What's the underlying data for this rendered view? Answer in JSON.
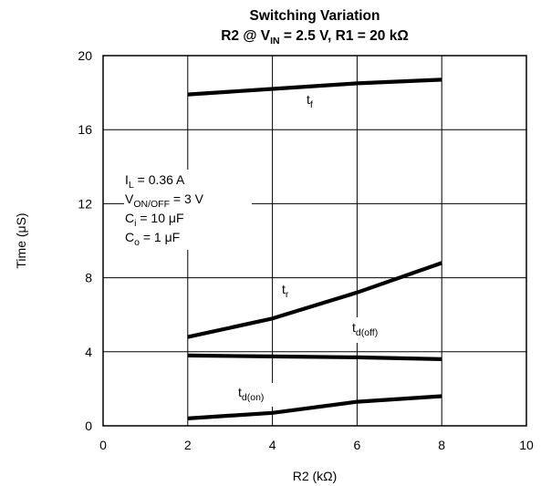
{
  "chart_data": {
    "type": "line",
    "title": {
      "line1": "Switching Variation",
      "line2_prefix": "R2 @ V",
      "line2_sub": "IN",
      "line2_suffix": " = 2.5 V, R1 = 20 kΩ"
    },
    "xlabel": "R2 (kΩ)",
    "ylabel": "Time  (μS)",
    "xlim": [
      0,
      10
    ],
    "ylim": [
      0,
      20
    ],
    "xticks": [
      0,
      2,
      4,
      6,
      8,
      10
    ],
    "yticks": [
      0,
      4,
      8,
      12,
      16,
      20
    ],
    "grid": true,
    "conditions": [
      {
        "main": "I",
        "sub": "L",
        "rest": " = 0.36 A"
      },
      {
        "main": "V",
        "sub": "ON/OFF",
        "rest": " = 3 V"
      },
      {
        "main": "C",
        "sub": "i",
        "rest": " = 10 μF"
      },
      {
        "main": "C",
        "sub": "o",
        "rest": " = 1 μF"
      }
    ],
    "series": [
      {
        "name": "t_f",
        "label_main": "t",
        "label_sub": "f",
        "x": [
          2,
          4,
          6,
          8
        ],
        "values": [
          17.9,
          18.2,
          18.5,
          18.7
        ]
      },
      {
        "name": "t_r",
        "label_main": "t",
        "label_sub": "r",
        "x": [
          2,
          4,
          6,
          8
        ],
        "values": [
          4.8,
          5.8,
          7.2,
          8.8
        ]
      },
      {
        "name": "t_d(off)",
        "label_main": "t",
        "label_sub": "d(off)",
        "x": [
          2,
          4,
          6,
          8
        ],
        "values": [
          3.8,
          3.75,
          3.7,
          3.6
        ]
      },
      {
        "name": "t_d(on)",
        "label_main": "t",
        "label_sub": "d(on)",
        "x": [
          2,
          4,
          6,
          8
        ],
        "values": [
          0.4,
          0.7,
          1.3,
          1.6
        ]
      }
    ]
  }
}
